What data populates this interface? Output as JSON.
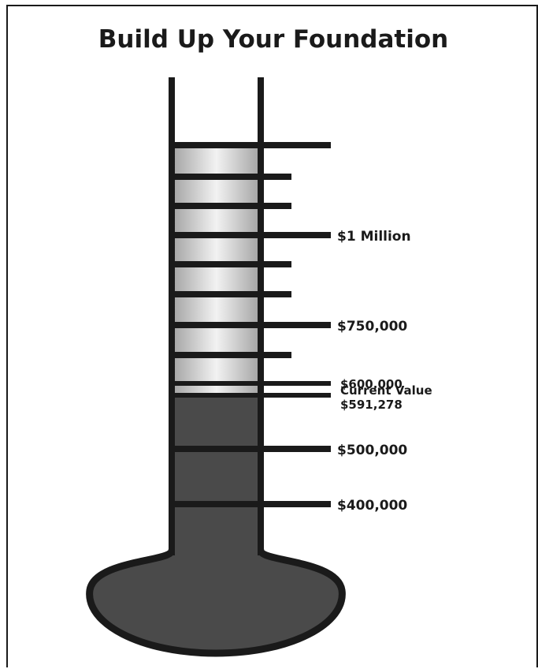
{
  "title": "Build Up Your Foundation",
  "colors": {
    "ink": "#1a1a1a",
    "fill": "#4a4a4a",
    "glass_edge": "#a6a6a6",
    "glass_highlight": "#f2f2f2",
    "background": "#ffffff"
  },
  "chart_data": {
    "type": "thermometer",
    "title": "Build Up Your Foundation",
    "current": {
      "label_line1": "Current Value",
      "label_line2": "$591,278",
      "value": 591278
    },
    "scale_labels": [
      {
        "value": 1000000,
        "text": "$1 Million"
      },
      {
        "value": 750000,
        "text": "$750,000"
      },
      {
        "value": 600000,
        "text": "$600,000"
      },
      {
        "value": 500000,
        "text": "$500,000"
      },
      {
        "value": 400000,
        "text": "$400,000"
      }
    ],
    "minor_ticks": [
      650000,
      820000,
      900000,
      945000
    ],
    "top_tick": 1200000
  }
}
